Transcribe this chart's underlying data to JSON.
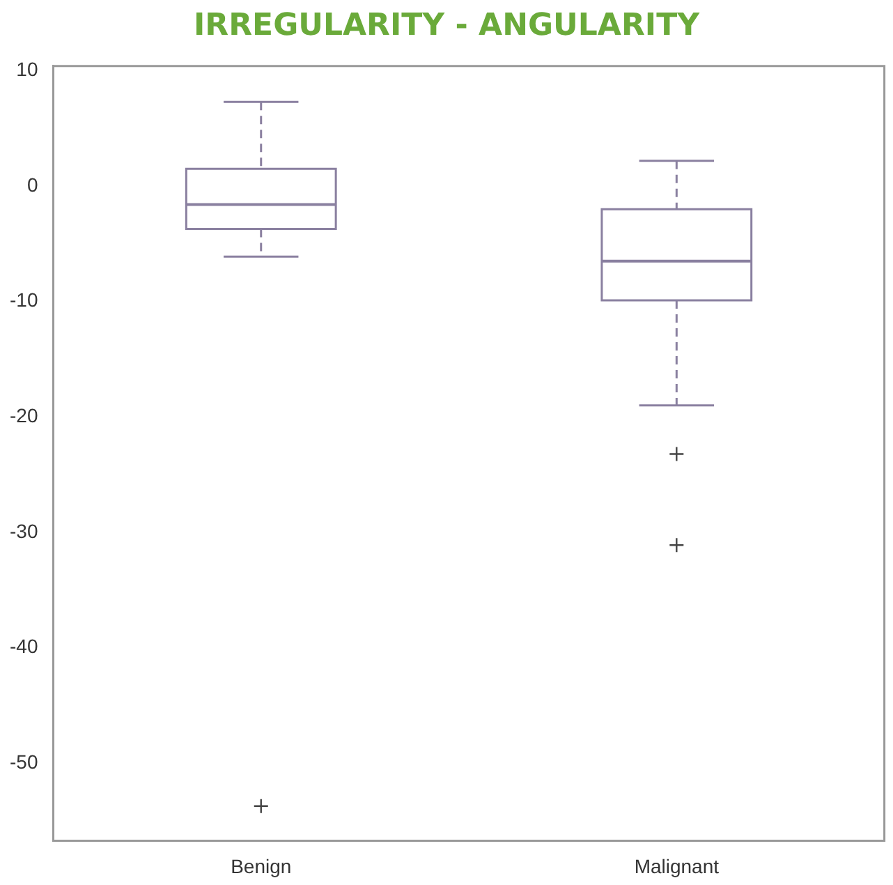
{
  "chart_data": {
    "type": "box",
    "title": "IRREGULARITY - ANGULARITY",
    "categories": [
      "Benign",
      "Malignant"
    ],
    "boxes": [
      {
        "low": -6.1,
        "q1": -3.7,
        "median": -1.6,
        "q3": 1.5,
        "high": 7.3,
        "outliers": [
          -53.7
        ]
      },
      {
        "low": -19,
        "q1": -9.9,
        "median": -6.5,
        "q3": -2,
        "high": 2.2,
        "outliers": [
          -23.2,
          -31.1
        ]
      }
    ],
    "color": "#8a80a0",
    "marker": "cross",
    "line_style": "dashed",
    "ylim": [
      -56.7,
      10.4
    ],
    "yticks": [
      10,
      0,
      -10,
      -20,
      -30,
      -40,
      -50
    ]
  }
}
